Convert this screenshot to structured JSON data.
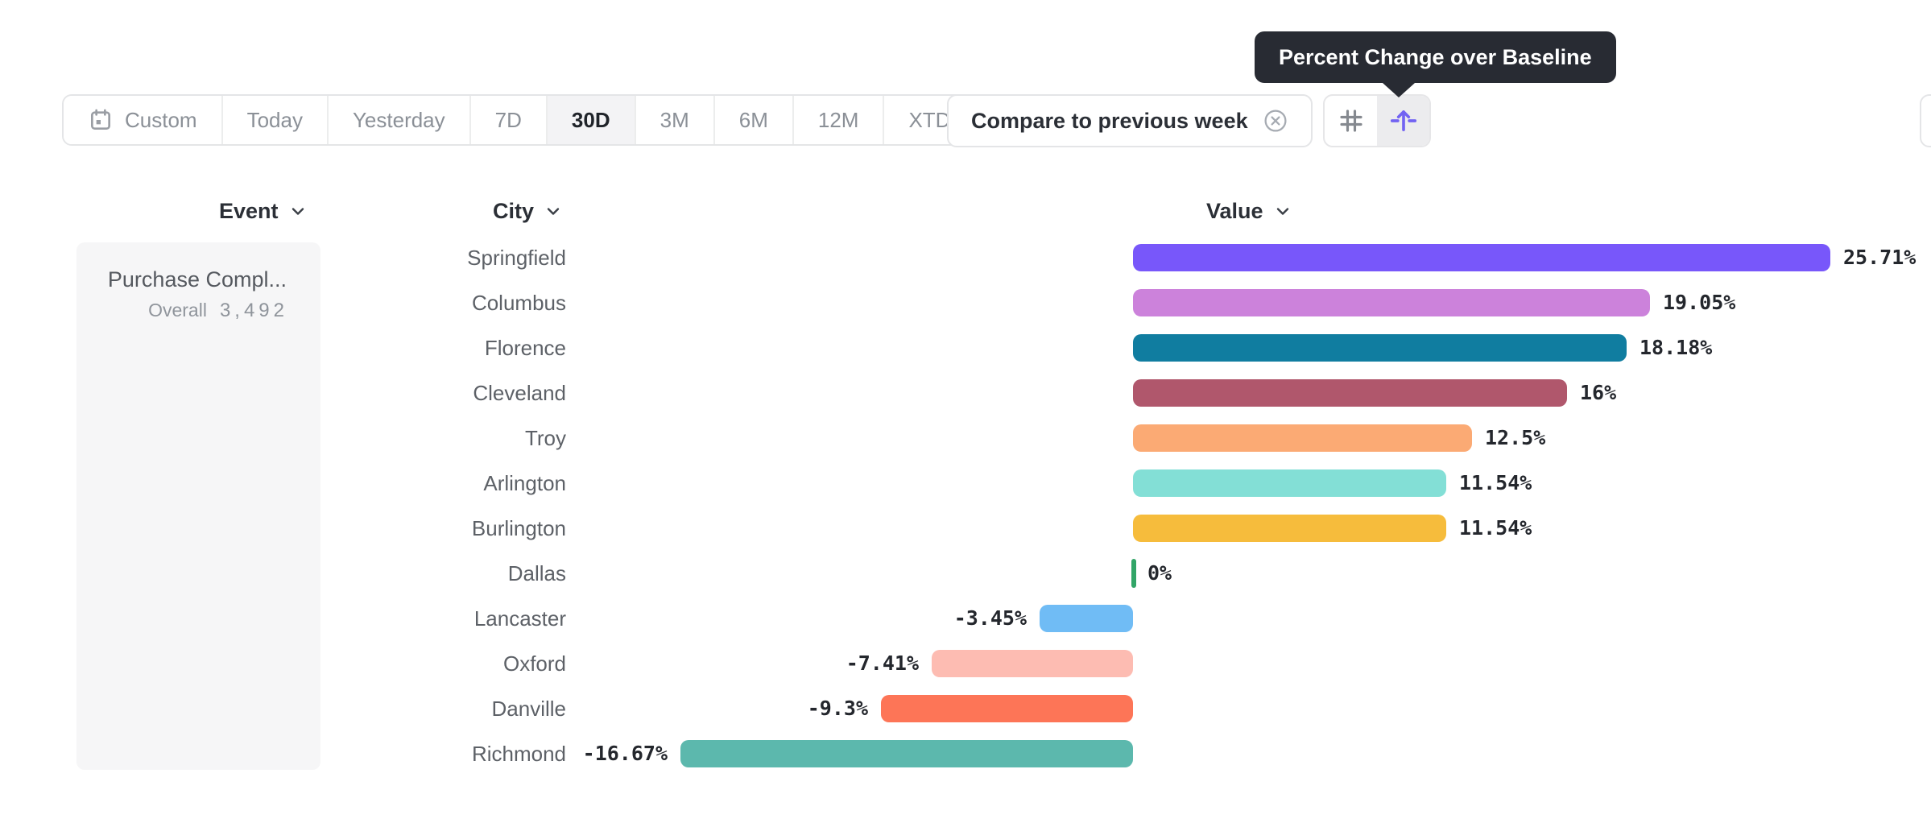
{
  "tooltip": {
    "text": "Percent Change over Baseline"
  },
  "toolbar": {
    "date_ranges": [
      {
        "label": "Custom",
        "selected": false,
        "icon": "calendar"
      },
      {
        "label": "Today",
        "selected": false
      },
      {
        "label": "Yesterday",
        "selected": false
      },
      {
        "label": "7D",
        "selected": false
      },
      {
        "label": "30D",
        "selected": true
      },
      {
        "label": "3M",
        "selected": false
      },
      {
        "label": "6M",
        "selected": false
      },
      {
        "label": "12M",
        "selected": false
      },
      {
        "label": "XTD",
        "selected": false,
        "chevron": true
      }
    ],
    "compare_chip": {
      "label": "Compare to previous week",
      "icon": "close-circle"
    },
    "view_toggle": [
      {
        "name": "grid-view",
        "icon": "grid",
        "selected": false
      },
      {
        "name": "baseline-lift-view",
        "icon": "baseline-lift",
        "selected": true
      }
    ]
  },
  "table": {
    "columns": [
      {
        "label": "Event"
      },
      {
        "label": "City"
      },
      {
        "label": "Value"
      }
    ],
    "event_cell": {
      "title": "Purchase Compl...",
      "overall_label": "Overall",
      "overall_value": "3,492"
    }
  },
  "chart_data": {
    "type": "bar",
    "orientation": "horizontal",
    "title": "Percent Change over Baseline",
    "unit": "percent",
    "baseline": 0,
    "categories": [
      "Springfield",
      "Columbus",
      "Florence",
      "Cleveland",
      "Troy",
      "Arlington",
      "Burlington",
      "Dallas",
      "Lancaster",
      "Oxford",
      "Danville",
      "Richmond"
    ],
    "values": [
      25.71,
      19.05,
      18.18,
      16,
      12.5,
      11.54,
      11.54,
      0,
      -3.45,
      -7.41,
      -9.3,
      -16.67
    ],
    "labels": [
      "25.71%",
      "19.05%",
      "18.18%",
      "16%",
      "12.5%",
      "11.54%",
      "11.54%",
      "0%",
      "-3.45%",
      "-7.41%",
      "-9.3%",
      "-16.67%"
    ],
    "colors": [
      "#7857FA",
      "#CC82DB",
      "#107DA0",
      "#B0576C",
      "#FBAA74",
      "#83DFD6",
      "#F6BC3C",
      "#31A567",
      "#70BCF5",
      "#FDBCB2",
      "#FD7557",
      "#5CB8AD"
    ],
    "xlim": [
      -18,
      28
    ],
    "grid": false,
    "legend": false
  },
  "accent_color": "#7263F2"
}
